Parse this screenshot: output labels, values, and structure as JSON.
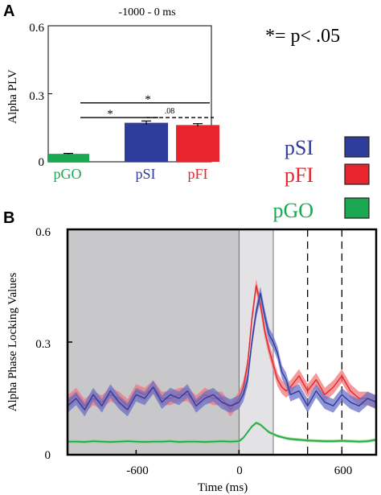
{
  "colors": {
    "pGO": "#1aa850",
    "pSI": "#2e3d9b",
    "pFI": "#e8242c",
    "pSI_band": "#6a72c8",
    "pFI_band": "#f0787c",
    "pGO_band": "#8fd07a",
    "baseline_shade": "#c8c7c9",
    "stimulus_shade": "#e3e3e5"
  },
  "significance_note": "*= p< .05",
  "chart_data": [
    {
      "panel": "A",
      "type": "bar",
      "title": "-1000 - 0 ms",
      "ylabel": "Alpha PLV",
      "ylim": [
        0,
        0.6
      ],
      "yticks": [
        0,
        0.3,
        0.6
      ],
      "ytick_labels": [
        "0",
        "0.3",
        "0.6"
      ],
      "categories": [
        "pGO",
        "pSI",
        "pFI"
      ],
      "values": [
        0.035,
        0.172,
        0.162
      ],
      "errors": [
        0.002,
        0.008,
        0.006
      ],
      "bar_colors": [
        "#1aa850",
        "#2e3d9b",
        "#e8242c"
      ],
      "annotations": [
        {
          "from": "pGO",
          "to": "pSI",
          "label": "*",
          "style": "solid",
          "y": 0.195
        },
        {
          "from": "pGO",
          "to": "pFI",
          "label": "*",
          "style": "solid",
          "y": 0.26
        },
        {
          "from": "pSI",
          "to": "pFI",
          "label": ".08",
          "style": "dashed",
          "y": 0.195
        }
      ]
    },
    {
      "panel": "B",
      "type": "line",
      "xlabel": "Time (ms)",
      "ylabel": "Alpha Phase Locking Values",
      "xlim": [
        -1000,
        800
      ],
      "ylim": [
        0,
        0.6
      ],
      "xticks": [
        -600,
        0,
        600
      ],
      "xtick_labels": [
        "-600",
        "0",
        "600"
      ],
      "yticks": [
        0,
        0.3,
        0.6
      ],
      "ytick_labels": [
        "0",
        "0.3",
        "0.6"
      ],
      "shaded_regions": [
        {
          "x0": -1000,
          "x1": 0,
          "color": "#c8c7c9"
        },
        {
          "x0": 0,
          "x1": 200,
          "color": "#e3e3e5"
        }
      ],
      "dashed_vlines": [
        400,
        600
      ],
      "x": [
        -1000,
        -950,
        -900,
        -850,
        -800,
        -750,
        -700,
        -650,
        -600,
        -550,
        -500,
        -450,
        -400,
        -350,
        -300,
        -250,
        -200,
        -150,
        -100,
        -50,
        0,
        25,
        50,
        75,
        100,
        125,
        150,
        175,
        200,
        225,
        250,
        275,
        300,
        350,
        400,
        450,
        500,
        550,
        600,
        650,
        700,
        750,
        800
      ],
      "series": [
        {
          "name": "pSI",
          "color": "#2e3d9b",
          "band_halfwidth": 0.018,
          "values": [
            0.13,
            0.15,
            0.12,
            0.16,
            0.13,
            0.17,
            0.14,
            0.12,
            0.16,
            0.15,
            0.18,
            0.14,
            0.16,
            0.15,
            0.17,
            0.13,
            0.15,
            0.16,
            0.14,
            0.13,
            0.14,
            0.16,
            0.2,
            0.3,
            0.38,
            0.43,
            0.37,
            0.32,
            0.3,
            0.27,
            0.22,
            0.2,
            0.16,
            0.17,
            0.13,
            0.17,
            0.14,
            0.13,
            0.16,
            0.14,
            0.13,
            0.15,
            0.14
          ]
        },
        {
          "name": "pFI",
          "color": "#e8242c",
          "band_halfwidth": 0.018,
          "values": [
            0.14,
            0.16,
            0.13,
            0.15,
            0.14,
            0.16,
            0.15,
            0.13,
            0.17,
            0.16,
            0.18,
            0.15,
            0.15,
            0.16,
            0.16,
            0.14,
            0.16,
            0.15,
            0.15,
            0.12,
            0.15,
            0.18,
            0.24,
            0.36,
            0.45,
            0.4,
            0.33,
            0.28,
            0.24,
            0.2,
            0.18,
            0.17,
            0.18,
            0.21,
            0.17,
            0.2,
            0.16,
            0.18,
            0.21,
            0.17,
            0.15,
            0.15,
            0.14
          ]
        },
        {
          "name": "pGO",
          "color": "#1aa850",
          "band_halfwidth": 0.004,
          "values": [
            0.035,
            0.035,
            0.034,
            0.036,
            0.035,
            0.034,
            0.035,
            0.036,
            0.035,
            0.034,
            0.035,
            0.035,
            0.036,
            0.034,
            0.035,
            0.035,
            0.034,
            0.035,
            0.036,
            0.035,
            0.036,
            0.045,
            0.06,
            0.075,
            0.085,
            0.08,
            0.07,
            0.06,
            0.055,
            0.05,
            0.047,
            0.044,
            0.042,
            0.04,
            0.038,
            0.037,
            0.036,
            0.036,
            0.037,
            0.036,
            0.035,
            0.036,
            0.04
          ]
        }
      ]
    }
  ],
  "legend": [
    {
      "label": "pSI",
      "color": "#2e3d9b"
    },
    {
      "label": "pFI",
      "color": "#e8242c"
    },
    {
      "label": "pGO",
      "color": "#1aa850"
    }
  ],
  "panel_labels": {
    "a": "A",
    "b": "B"
  }
}
